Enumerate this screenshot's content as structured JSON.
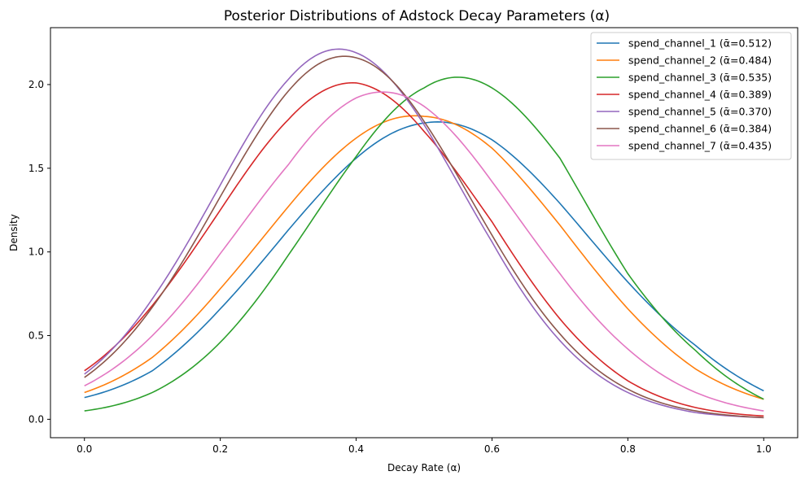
{
  "chart_data": {
    "type": "line",
    "title": "Posterior Distributions of Adstock Decay Parameters (α)",
    "xlabel": "Decay Rate (α)",
    "ylabel": "Density",
    "xlim": [
      -0.05,
      1.05
    ],
    "ylim": [
      -0.11,
      2.34
    ],
    "x_ticks": [
      "0.0",
      "0.2",
      "0.4",
      "0.6",
      "0.8",
      "1.0"
    ],
    "x_tick_values": [
      0.0,
      0.2,
      0.4,
      0.6,
      0.8,
      1.0
    ],
    "y_ticks": [
      "0.0",
      "0.5",
      "1.0",
      "1.5",
      "2.0"
    ],
    "y_tick_values": [
      0.0,
      0.5,
      1.0,
      1.5,
      2.0
    ],
    "grid": false,
    "legend_position": "top-right",
    "x": [
      0.0,
      0.1,
      0.2,
      0.3,
      0.4,
      0.5,
      0.6,
      0.7,
      0.8,
      0.9,
      1.0
    ],
    "series": [
      {
        "name": "spend_channel_1",
        "label": "spend_channel_1 (ᾱ=0.512)",
        "color": "#1f77b4",
        "mean": 0.512,
        "peak": 1.77,
        "values": [
          0.13,
          0.29,
          0.66,
          1.13,
          1.56,
          1.77,
          1.67,
          1.29,
          0.82,
          0.44,
          0.17
        ]
      },
      {
        "name": "spend_channel_2",
        "label": "spend_channel_2 (ᾱ=0.484)",
        "color": "#ff7f0e",
        "mean": 0.484,
        "peak": 1.81,
        "values": [
          0.16,
          0.37,
          0.78,
          1.27,
          1.68,
          1.81,
          1.62,
          1.16,
          0.66,
          0.3,
          0.12
        ]
      },
      {
        "name": "spend_channel_3",
        "label": "spend_channel_3 (ᾱ=0.535)",
        "color": "#2ca02c",
        "mean": 0.535,
        "peak": 2.03,
        "values": [
          0.05,
          0.16,
          0.46,
          0.98,
          1.57,
          1.98,
          1.98,
          1.56,
          0.87,
          0.41,
          0.12
        ]
      },
      {
        "name": "spend_channel_4",
        "label": "spend_channel_4 (ᾱ=0.389)",
        "color": "#d62728",
        "mean": 0.389,
        "peak": 2.01,
        "values": [
          0.29,
          0.68,
          1.25,
          1.79,
          2.01,
          1.72,
          1.18,
          0.6,
          0.23,
          0.07,
          0.02
        ]
      },
      {
        "name": "spend_channel_5",
        "label": "spend_channel_5 (ᾱ=0.370)",
        "color": "#9467bd",
        "mean": 0.37,
        "peak": 2.21,
        "values": [
          0.27,
          0.72,
          1.4,
          2.03,
          2.19,
          1.76,
          1.06,
          0.47,
          0.16,
          0.04,
          0.01
        ]
      },
      {
        "name": "spend_channel_6",
        "label": "spend_channel_6 (ᾱ=0.384)",
        "color": "#8c564b",
        "mean": 0.384,
        "peak": 2.17,
        "values": [
          0.25,
          0.67,
          1.33,
          1.96,
          2.16,
          1.78,
          1.1,
          0.51,
          0.18,
          0.05,
          0.01
        ]
      },
      {
        "name": "spend_channel_7",
        "label": "spend_channel_7 (ᾱ=0.435)",
        "color": "#e377c2",
        "mean": 0.435,
        "peak": 1.96,
        "values": [
          0.2,
          0.5,
          0.99,
          1.52,
          1.92,
          1.87,
          1.42,
          0.87,
          0.42,
          0.16,
          0.05
        ]
      }
    ]
  }
}
